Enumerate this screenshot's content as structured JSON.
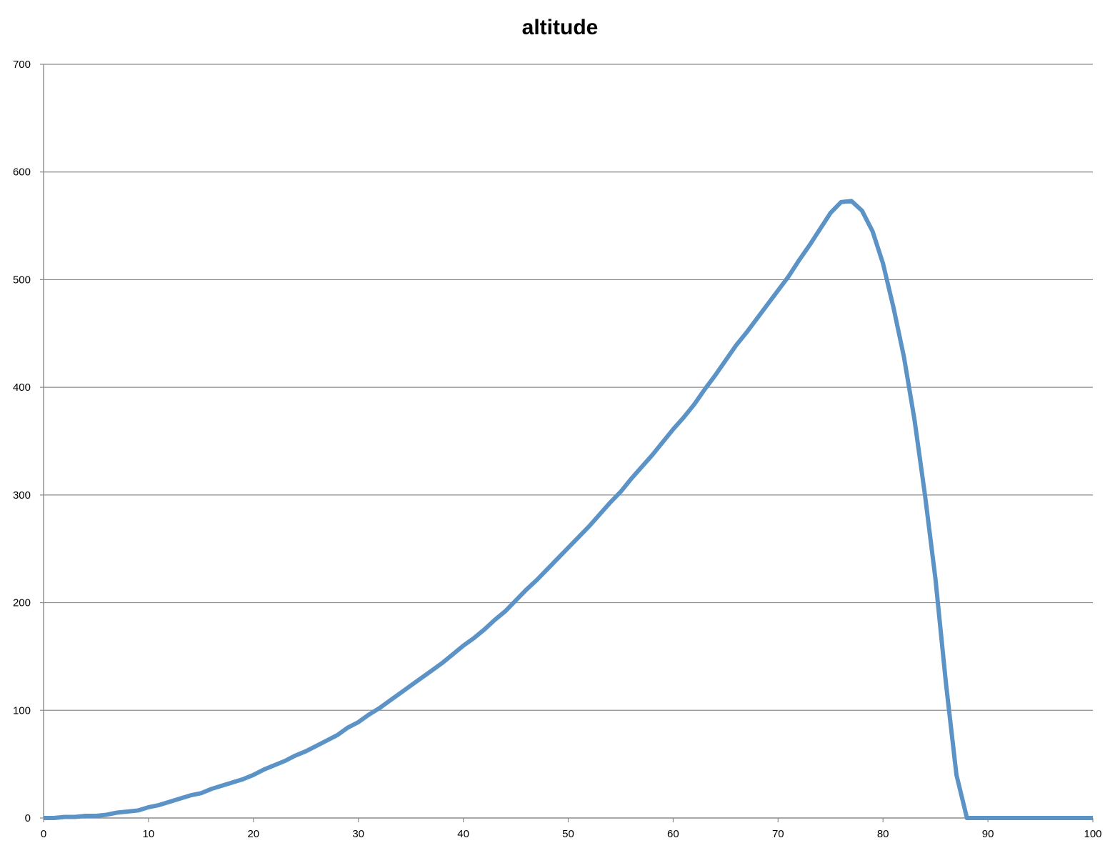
{
  "chart_data": {
    "type": "line",
    "title": "altitude",
    "xlabel": "",
    "ylabel": "",
    "xlim": [
      0,
      100
    ],
    "ylim": [
      0,
      700
    ],
    "x_ticks": [
      0,
      10,
      20,
      30,
      40,
      50,
      60,
      70,
      80,
      90,
      100
    ],
    "y_ticks": [
      0,
      100,
      200,
      300,
      400,
      500,
      600,
      700
    ],
    "grid": "horizontal",
    "legend": "none",
    "series": [
      {
        "color": "#5b93c7",
        "x": [
          0,
          1,
          2,
          3,
          4,
          5,
          6,
          7,
          8,
          9,
          10,
          11,
          12,
          13,
          14,
          15,
          16,
          17,
          18,
          19,
          20,
          21,
          22,
          23,
          24,
          25,
          26,
          27,
          28,
          29,
          30,
          31,
          32,
          33,
          34,
          35,
          36,
          37,
          38,
          39,
          40,
          41,
          42,
          43,
          44,
          45,
          46,
          47,
          48,
          49,
          50,
          51,
          52,
          53,
          54,
          55,
          56,
          57,
          58,
          59,
          60,
          61,
          62,
          63,
          64,
          65,
          66,
          67,
          68,
          69,
          70,
          71,
          72,
          73,
          74,
          75,
          76,
          77,
          78,
          79,
          80,
          81,
          82,
          83,
          84,
          85,
          86,
          87,
          88,
          89,
          90,
          91,
          92,
          93,
          94,
          95,
          96,
          97,
          98,
          99,
          100
        ],
        "values": [
          0,
          0,
          1,
          1,
          2,
          2,
          3,
          5,
          6,
          7,
          10,
          12,
          15,
          18,
          21,
          23,
          27,
          30,
          33,
          36,
          40,
          45,
          49,
          53,
          58,
          62,
          67,
          72,
          77,
          84,
          89,
          96,
          102,
          109,
          116,
          123,
          130,
          137,
          144,
          152,
          160,
          167,
          175,
          184,
          192,
          202,
          212,
          221,
          231,
          241,
          251,
          261,
          271,
          282,
          293,
          303,
          315,
          326,
          337,
          349,
          361,
          372,
          384,
          398,
          411,
          425,
          439,
          451,
          464,
          477,
          490,
          503,
          518,
          532,
          547,
          562,
          572,
          573,
          564,
          545,
          515,
          474,
          428,
          370,
          300,
          222,
          125,
          40,
          0,
          0,
          0,
          0,
          0,
          0,
          0,
          0,
          0,
          0,
          0,
          0,
          0
        ]
      }
    ]
  },
  "colors": {
    "line": "#5b93c7",
    "grid": "#8c8c8c",
    "axis": "#8c8c8c"
  }
}
